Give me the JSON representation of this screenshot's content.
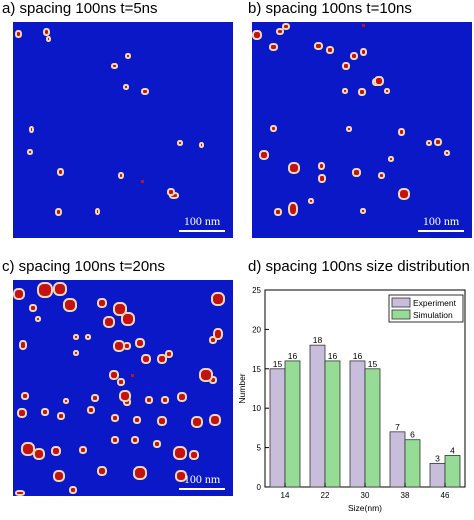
{
  "panels": {
    "a": {
      "title": "a) spacing 100ns  t=5ns",
      "scale": "100 nm"
    },
    "b": {
      "title": "b) spacing 100ns  t=10ns",
      "scale": "100 nm"
    },
    "c": {
      "title": "c) spacing 100ns  t=20ns",
      "scale": "100 nm"
    },
    "d": {
      "title": "d) spacing 100ns size distribution"
    }
  },
  "colors": {
    "background": "#0a18c8",
    "grain": "#c41111",
    "grain_edge": "#efd9b8",
    "experiment": "#c8bedc",
    "simulation": "#96dc96"
  },
  "chart_data": {
    "type": "bar",
    "xlabel": "Size(nm)",
    "ylabel": "Number",
    "categories": [
      "14",
      "22",
      "30",
      "38",
      "46"
    ],
    "series": [
      {
        "name": "Experiment",
        "values": [
          15,
          18,
          16,
          7,
          3
        ]
      },
      {
        "name": "Simulation",
        "values": [
          16,
          16,
          15,
          6,
          4
        ]
      }
    ],
    "ylim": [
      0,
      25
    ],
    "yticks": [
      0,
      5,
      10,
      15,
      20,
      25
    ],
    "legend": "top-right",
    "grid": false
  }
}
